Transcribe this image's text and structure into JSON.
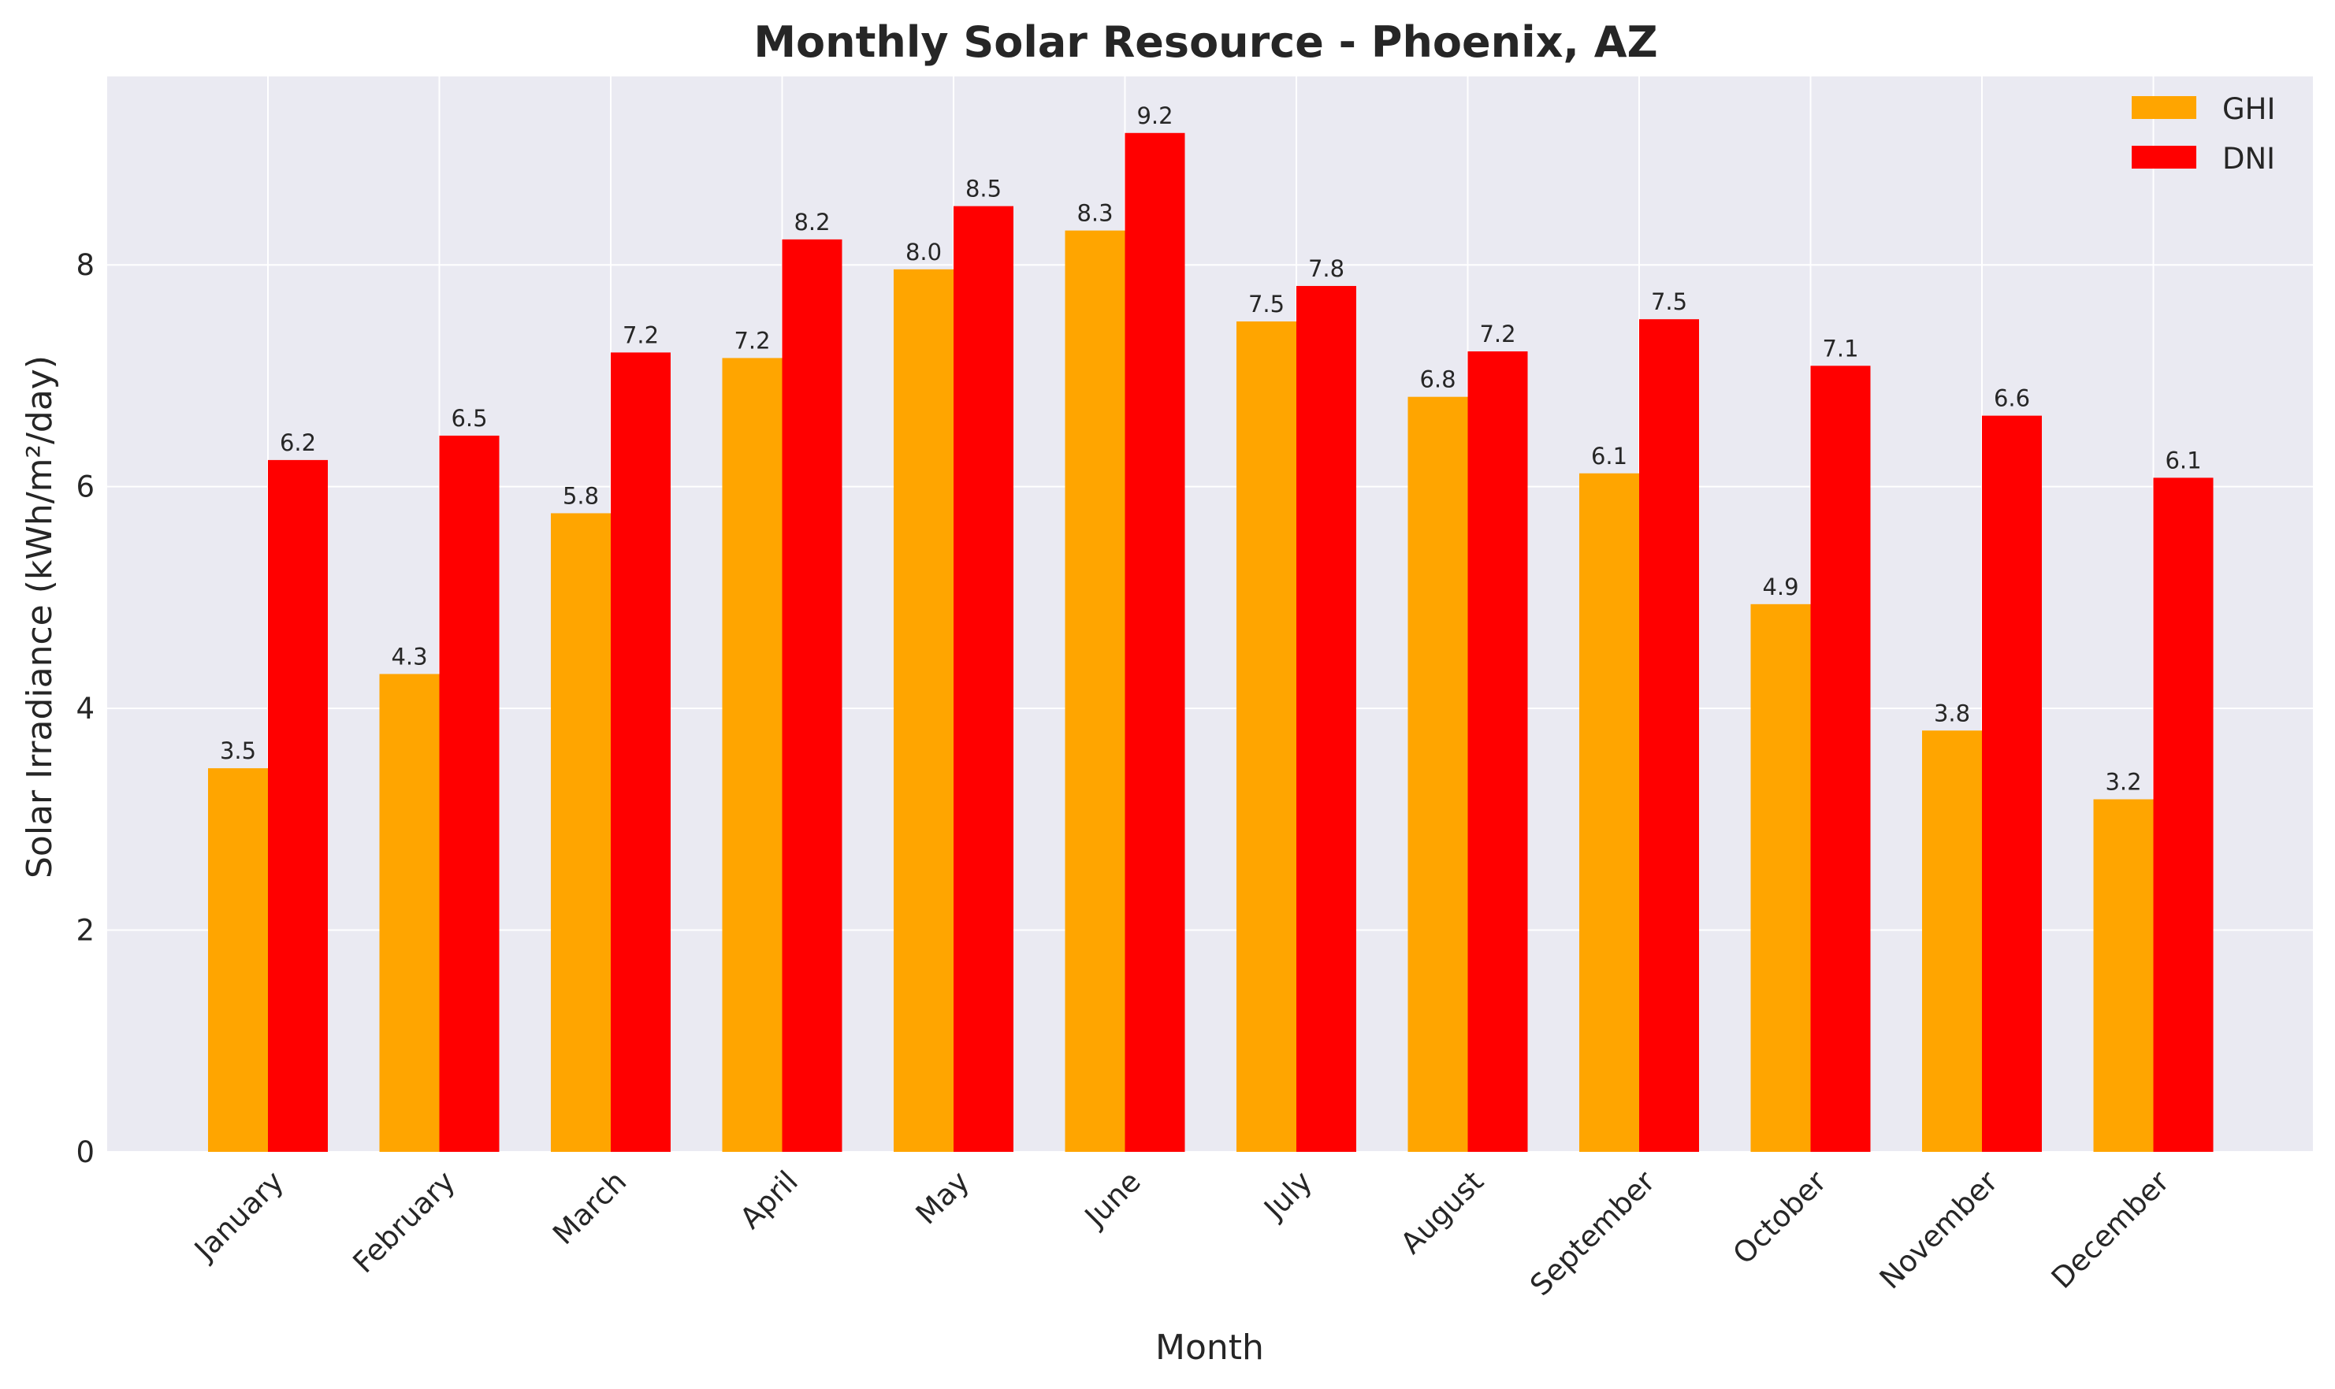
{
  "chart_data": {
    "type": "bar",
    "title": "Monthly Solar Resource - Phoenix, AZ",
    "xlabel": "Month",
    "ylabel": "Solar Irradiance (kWh/m²/day)",
    "categories": [
      "January",
      "February",
      "March",
      "April",
      "May",
      "June",
      "July",
      "August",
      "September",
      "October",
      "November",
      "December"
    ],
    "series": [
      {
        "name": "GHI",
        "color": "#FFA500",
        "values": [
          3.46,
          4.31,
          5.76,
          7.16,
          7.96,
          8.31,
          7.49,
          6.81,
          6.12,
          4.94,
          3.8,
          3.18
        ],
        "labels": [
          "3.5",
          "4.3",
          "5.8",
          "7.2",
          "8.0",
          "8.3",
          "7.5",
          "6.8",
          "6.1",
          "4.9",
          "3.8",
          "3.2"
        ]
      },
      {
        "name": "DNI",
        "color": "#FF0000",
        "values": [
          6.24,
          6.46,
          7.21,
          8.23,
          8.53,
          9.19,
          7.81,
          7.22,
          7.51,
          7.09,
          6.64,
          6.08
        ],
        "labels": [
          "6.2",
          "6.5",
          "7.2",
          "8.2",
          "8.5",
          "9.2",
          "7.8",
          "7.2",
          "7.5",
          "7.1",
          "6.6",
          "6.1"
        ]
      }
    ],
    "yticks": [
      "0",
      "2",
      "4",
      "6",
      "8"
    ],
    "ylim": [
      0,
      9.7
    ],
    "grid": true,
    "legend_position": "top-right",
    "background_color": "#EAEAF2"
  }
}
